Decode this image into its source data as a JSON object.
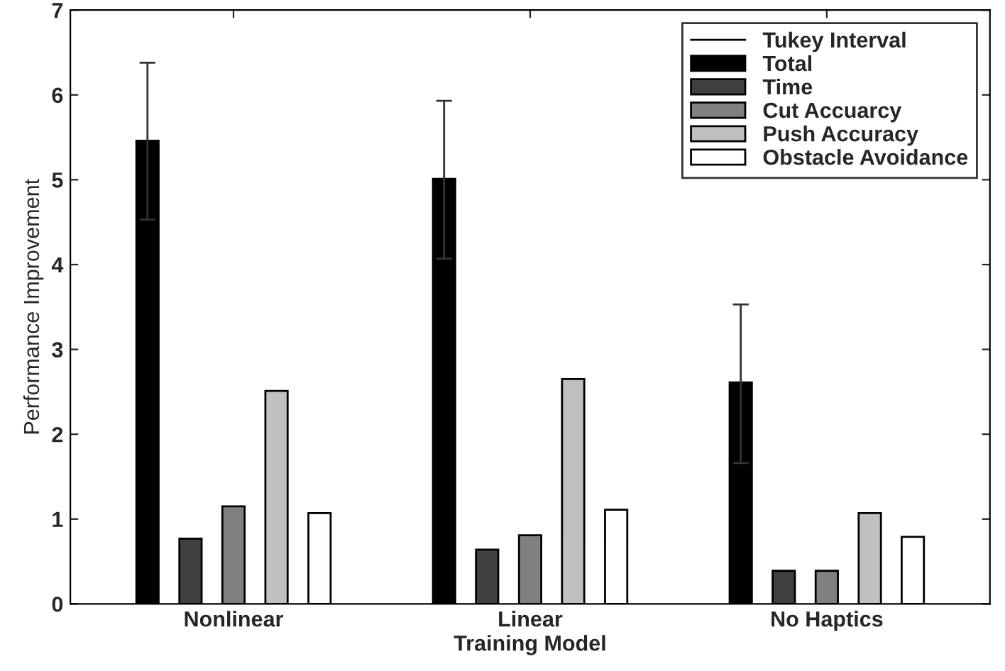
{
  "chart_data": {
    "type": "bar",
    "xlabel": "Training Model",
    "ylabel": "Performance Improvement",
    "categories": [
      "Nonlinear",
      "Linear",
      "No Haptics"
    ],
    "series": [
      {
        "name": "Total",
        "color": "#000000",
        "values": [
          5.46,
          5.01,
          2.61
        ],
        "errors": [
          [
            4.53,
            6.38
          ],
          [
            4.07,
            5.93
          ],
          [
            1.66,
            3.53
          ]
        ]
      },
      {
        "name": "Time",
        "color": "#404040",
        "values": [
          0.77,
          0.64,
          0.39
        ]
      },
      {
        "name": "Cut Accuarcy",
        "color": "#808080",
        "values": [
          1.15,
          0.81,
          0.39
        ]
      },
      {
        "name": "Push Accuracy",
        "color": "#c0c0c0",
        "values": [
          2.51,
          2.65,
          1.07
        ]
      },
      {
        "name": "Obstacle Avoidance",
        "color": "#ffffff",
        "values": [
          1.07,
          1.11,
          0.79
        ]
      }
    ],
    "annotations": [
      "Tukey Interval"
    ],
    "ylim": [
      0,
      7
    ],
    "yticks": [
      0,
      1,
      2,
      3,
      4,
      5,
      6,
      7
    ],
    "grid": false,
    "legend": "top right"
  }
}
